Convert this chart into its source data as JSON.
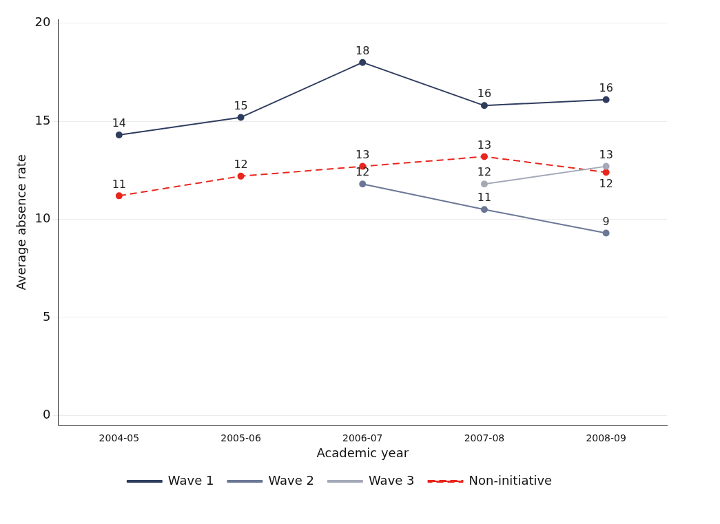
{
  "chart_data": {
    "type": "line",
    "xlabel": "Academic year",
    "ylabel": "Average absence rate",
    "categories": [
      "2004-05",
      "2005-06",
      "2006-07",
      "2007-08",
      "2008-09"
    ],
    "series": [
      {
        "name": "Wave 1",
        "color": "#2e3c5e",
        "values": [
          14.3,
          15.2,
          18.0,
          15.8,
          16.1
        ],
        "value_labels": [
          "14",
          "15",
          "18",
          "16",
          "16"
        ]
      },
      {
        "name": "Wave 2",
        "color": "#6b7796",
        "values": [
          null,
          null,
          11.8,
          10.5,
          9.3
        ],
        "value_labels": [
          null,
          null,
          "12",
          "11",
          "9"
        ]
      },
      {
        "name": "Wave 3",
        "color": "#a4a9b7",
        "values": [
          null,
          null,
          null,
          11.8,
          12.7
        ],
        "value_labels": [
          null,
          null,
          null,
          "12",
          "13"
        ]
      },
      {
        "name": "Non-initiative",
        "color": "#e8261e",
        "line_style": "dashed",
        "values": [
          11.2,
          12.2,
          12.7,
          13.2,
          12.4
        ],
        "value_labels": [
          "11",
          "12",
          "13",
          "13",
          "12"
        ]
      }
    ],
    "ylim": [
      -0.5,
      20.2
    ],
    "yticks": [
      0,
      5,
      10,
      15,
      20
    ],
    "grid": "y",
    "legend": "bottom",
    "marker": "circle",
    "line_style": "solid"
  }
}
